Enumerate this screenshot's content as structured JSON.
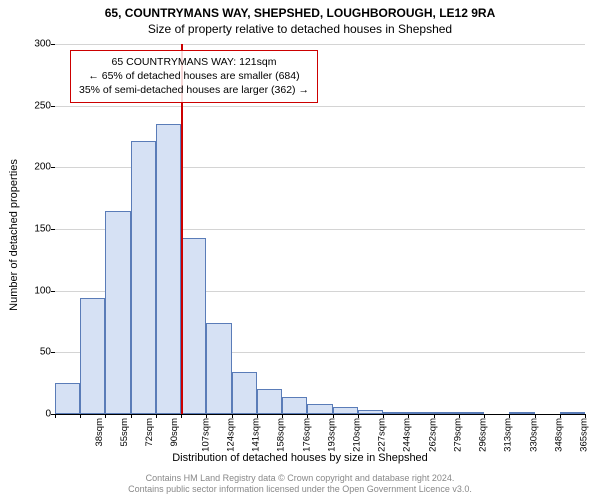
{
  "titles": {
    "line1": "65, COUNTRYMANS WAY, SHEPSHED, LOUGHBOROUGH, LE12 9RA",
    "line2": "Size of property relative to detached houses in Shepshed"
  },
  "annotation": {
    "line1": "65 COUNTRYMANS WAY: 121sqm",
    "line2": "← 65% of detached houses are smaller (684)",
    "line3": "35% of semi-detached houses are larger (362) →"
  },
  "axes": {
    "ylabel": "Number of detached properties",
    "xlabel": "Distribution of detached houses by size in Shepshed",
    "ylim": [
      0,
      300
    ],
    "ytick_step": 50,
    "yticks": [
      0,
      50,
      100,
      150,
      200,
      250,
      300
    ]
  },
  "chart": {
    "type": "histogram",
    "reference_value": 121,
    "reference_x_bin_index": 5,
    "bar_fill": "#d6e1f4",
    "bar_border": "#5a7cb8",
    "reference_line_color": "#cc0000",
    "grid_color": "#d4d4d4",
    "background_color": "#ffffff",
    "bins": [
      {
        "label": "38sqm",
        "value": 25
      },
      {
        "label": "55sqm",
        "value": 94
      },
      {
        "label": "72sqm",
        "value": 165
      },
      {
        "label": "90sqm",
        "value": 221
      },
      {
        "label": "107sqm",
        "value": 235
      },
      {
        "label": "124sqm",
        "value": 143
      },
      {
        "label": "141sqm",
        "value": 74
      },
      {
        "label": "158sqm",
        "value": 34
      },
      {
        "label": "176sqm",
        "value": 20
      },
      {
        "label": "193sqm",
        "value": 14
      },
      {
        "label": "210sqm",
        "value": 8
      },
      {
        "label": "227sqm",
        "value": 6
      },
      {
        "label": "244sqm",
        "value": 3
      },
      {
        "label": "262sqm",
        "value": 2
      },
      {
        "label": "279sqm",
        "value": 2
      },
      {
        "label": "296sqm",
        "value": 1
      },
      {
        "label": "313sqm",
        "value": 1
      },
      {
        "label": "330sqm",
        "value": 0
      },
      {
        "label": "348sqm",
        "value": 1
      },
      {
        "label": "365sqm",
        "value": 0
      },
      {
        "label": "382sqm",
        "value": 2
      }
    ]
  },
  "footer": {
    "line1": "Contains HM Land Registry data © Crown copyright and database right 2024.",
    "line2": "Contains public sector information licensed under the Open Government Licence v3.0."
  }
}
